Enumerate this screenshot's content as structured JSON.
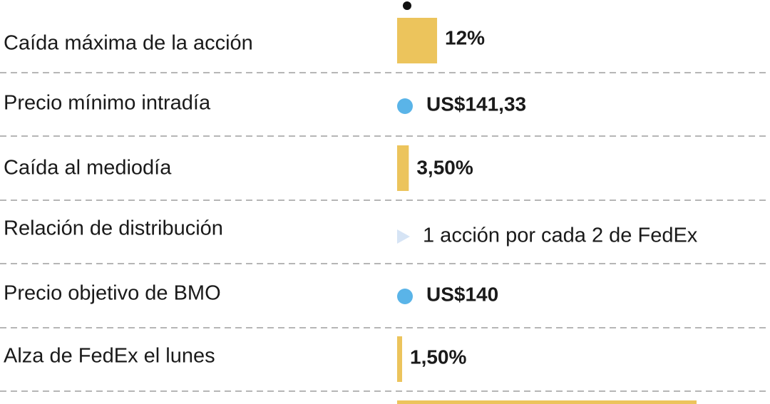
{
  "rows": [
    {
      "label": "Caída máxima de la acción",
      "kind": "bar",
      "value": 12,
      "value_label": "12%"
    },
    {
      "label": "Precio mínimo intradía",
      "kind": "dot",
      "text": "US$141,33"
    },
    {
      "label": "Caída al mediodía",
      "kind": "bar",
      "value": 3.5,
      "value_label": "3,50%"
    },
    {
      "label": "Relación de distribución",
      "kind": "arrow",
      "text": "1 acción por cada 2 de FedEx"
    },
    {
      "label": "Precio objetivo de BMO",
      "kind": "dot",
      "text": "US$140"
    },
    {
      "label": "Alza de FedEx el lunes",
      "kind": "bar",
      "value": 1.5,
      "value_label": "1,50%"
    }
  ]
}
